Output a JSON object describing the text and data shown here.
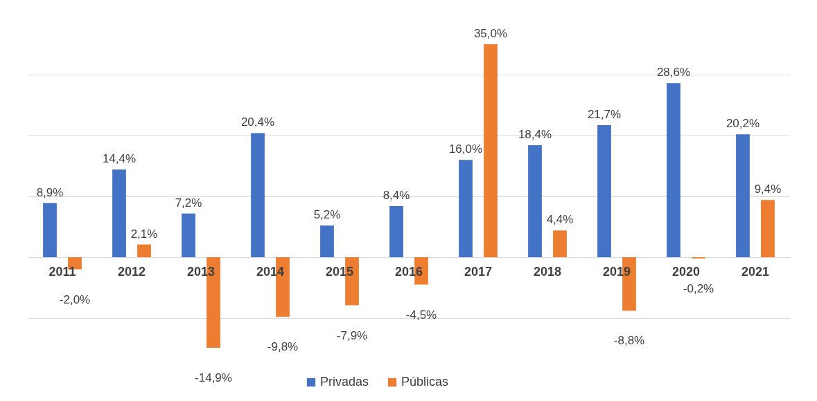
{
  "chart_data": {
    "type": "bar",
    "categories": [
      "2011",
      "2012",
      "2013",
      "2014",
      "2015",
      "2016",
      "2017",
      "2018",
      "2019",
      "2020",
      "2021"
    ],
    "series": [
      {
        "name": "Privadas",
        "color": "#4472c4",
        "values": [
          8.9,
          14.4,
          7.2,
          20.4,
          5.2,
          8.4,
          16.0,
          18.4,
          21.7,
          28.6,
          20.2
        ],
        "value_labels": [
          "8,9%",
          "14,4%",
          "7,2%",
          "20,4%",
          "5,2%",
          "8,4%",
          "16,0%",
          "18,4%",
          "21,7%",
          "28,6%",
          "20,2%"
        ]
      },
      {
        "name": "Públicas",
        "color": "#ed7d31",
        "values": [
          -2.0,
          2.1,
          -14.9,
          -9.8,
          -7.9,
          -4.5,
          35.0,
          4.4,
          -8.8,
          -0.2,
          9.4
        ],
        "value_labels": [
          "-2,0%",
          "2,1%",
          "-14,9%",
          "-9,8%",
          "-7,9%",
          "-4,5%",
          "35,0%",
          "4,4%",
          "-8,8%",
          "-0,2%",
          "9,4%"
        ]
      }
    ],
    "tick_labels": "x",
    "grid": "y",
    "legend": "bottom"
  }
}
